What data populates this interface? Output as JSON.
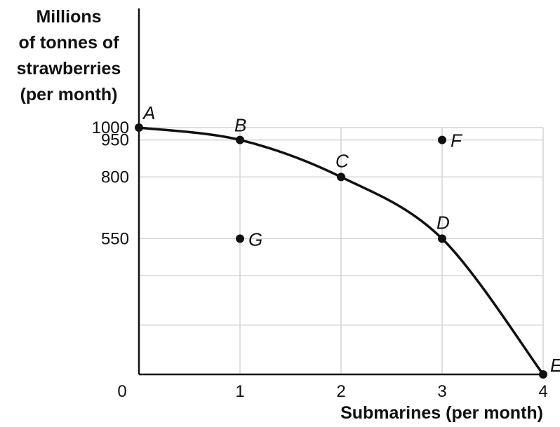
{
  "chart_data": {
    "type": "line",
    "ylabel_lines": [
      "Millions",
      "of tonnes of",
      "strawberries",
      "(per month)"
    ],
    "xlabel": "Submarines (per month)",
    "xlim": [
      0,
      4
    ],
    "ylim": [
      0,
      1000
    ],
    "x_ticks": [
      "0",
      "1",
      "2",
      "3",
      "4"
    ],
    "y_ticks": [
      {
        "label": "1000",
        "value": 1000
      },
      {
        "label": "950",
        "value": 950
      },
      {
        "label": "800",
        "value": 800
      },
      {
        "label": "550",
        "value": 550
      }
    ],
    "grid": true,
    "series": [
      {
        "points": [
          {
            "label": "A",
            "x": 0,
            "y": 1000
          },
          {
            "label": "B",
            "x": 1,
            "y": 950
          },
          {
            "label": "C",
            "x": 2,
            "y": 800
          },
          {
            "label": "D",
            "x": 3,
            "y": 550
          },
          {
            "label": "E",
            "x": 4,
            "y": 0
          }
        ]
      }
    ],
    "extra_points": [
      {
        "label": "F",
        "x": 3,
        "y": 950
      },
      {
        "label": "G",
        "x": 1,
        "y": 550
      }
    ]
  }
}
